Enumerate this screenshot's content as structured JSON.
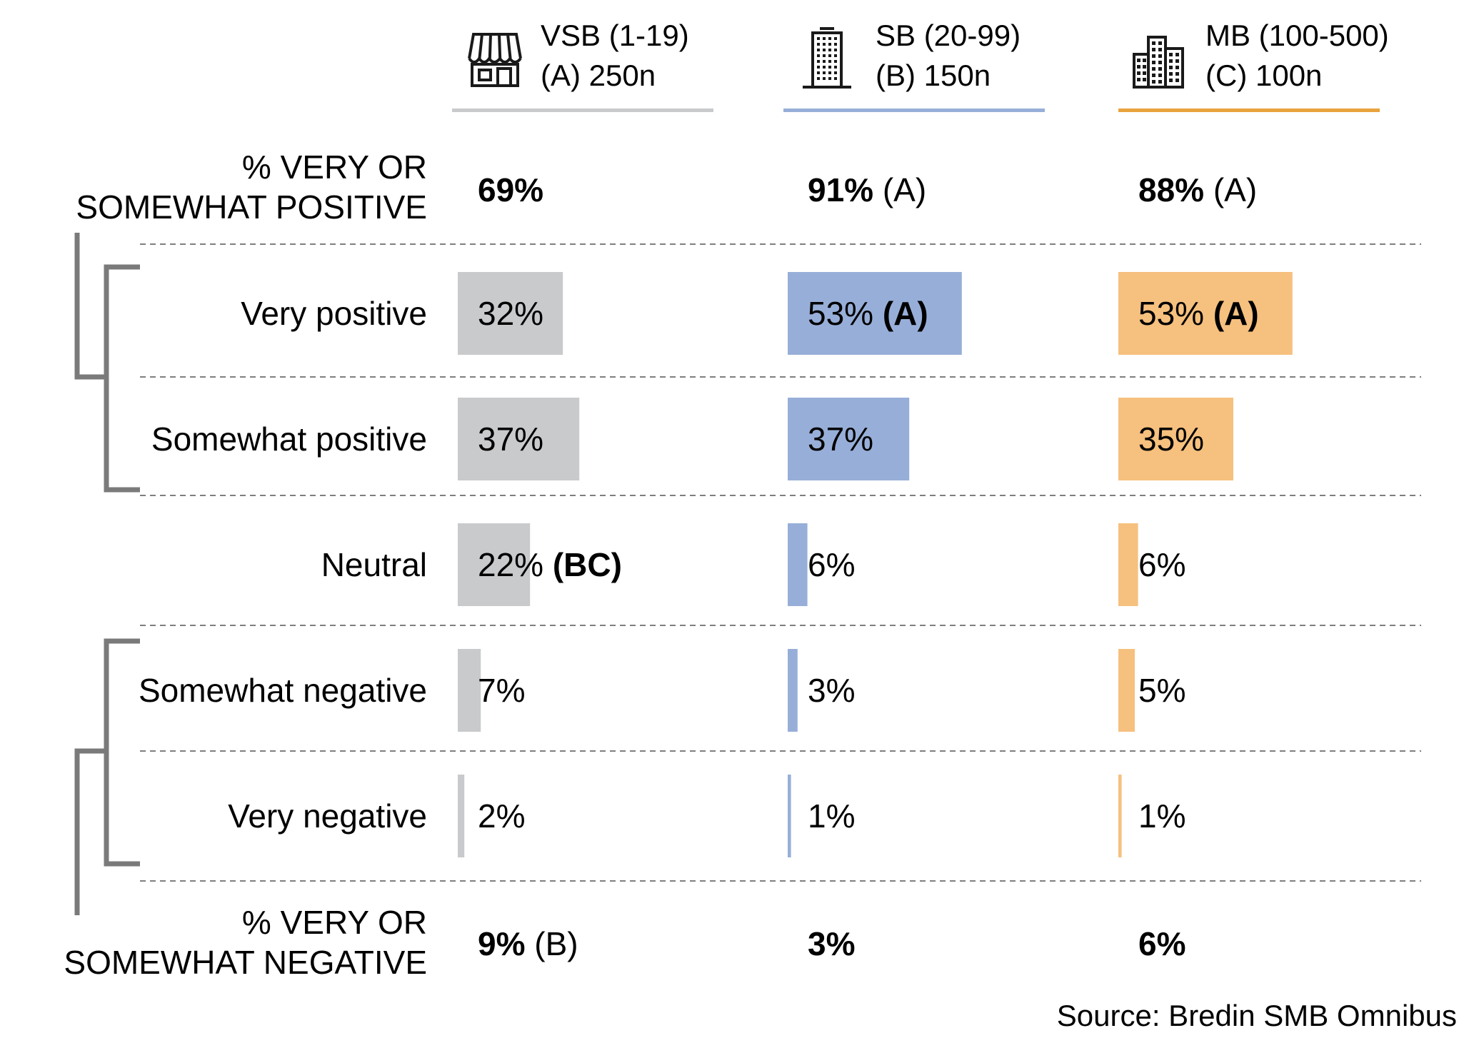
{
  "colors": {
    "vsb": "#C8CACC",
    "sb": "#97AFD8",
    "mb": "#F6C07E",
    "vsb_line": "#C8CACC",
    "sb_line": "#97AFD8",
    "mb_line": "#E9A33C",
    "bracket": "#7A7A7A",
    "divider": "#7F7F7F",
    "icon": "#1A1A1A"
  },
  "chart_data": {
    "type": "bar",
    "orientation": "horizontal",
    "xlim": [
      0,
      100
    ],
    "columns": [
      {
        "key": "vsb",
        "line1": "VSB (1-19)",
        "line2": "(A) 250n",
        "icon": "storefront-icon"
      },
      {
        "key": "sb",
        "line1": "SB (20-99)",
        "line2": "(B) 150n",
        "icon": "office-building-icon"
      },
      {
        "key": "mb",
        "line1": "MB (100-500)",
        "line2": "(C) 100n",
        "icon": "city-buildings-icon"
      }
    ],
    "summary_top": {
      "label_line1": "% VERY OR",
      "label_line2": "SOMEWHAT POSITIVE",
      "values": [
        {
          "value": "69%",
          "sig": ""
        },
        {
          "value": "91%",
          "sig": "(A)"
        },
        {
          "value": "88%",
          "sig": "(A)"
        }
      ]
    },
    "rows": [
      {
        "label": "Very positive",
        "values": [
          32,
          53,
          53
        ],
        "text": [
          "32%",
          "53%",
          "53%"
        ],
        "sig": [
          "",
          "(A)",
          "(A)"
        ]
      },
      {
        "label": "Somewhat positive",
        "values": [
          37,
          37,
          35
        ],
        "text": [
          "37%",
          "37%",
          "35%"
        ],
        "sig": [
          "",
          "",
          ""
        ]
      },
      {
        "label": "Neutral",
        "values": [
          22,
          6,
          6
        ],
        "text": [
          "22%",
          "6%",
          "6%"
        ],
        "sig": [
          "(BC)",
          "",
          ""
        ]
      },
      {
        "label": "Somewhat negative",
        "values": [
          7,
          3,
          5
        ],
        "text": [
          "7%",
          "3%",
          "5%"
        ],
        "sig": [
          "",
          "",
          ""
        ]
      },
      {
        "label": "Very negative",
        "values": [
          2,
          1,
          1
        ],
        "text": [
          "2%",
          "1%",
          "1%"
        ],
        "sig": [
          "",
          "",
          ""
        ]
      }
    ],
    "summary_bottom": {
      "label_line1": "% VERY OR",
      "label_line2": "SOMEWHAT NEGATIVE",
      "values": [
        {
          "value": "9%",
          "sig": "(B)"
        },
        {
          "value": "3%",
          "sig": ""
        },
        {
          "value": "6%",
          "sig": ""
        }
      ]
    },
    "source": "Source: Bredin SMB Omnibus"
  }
}
